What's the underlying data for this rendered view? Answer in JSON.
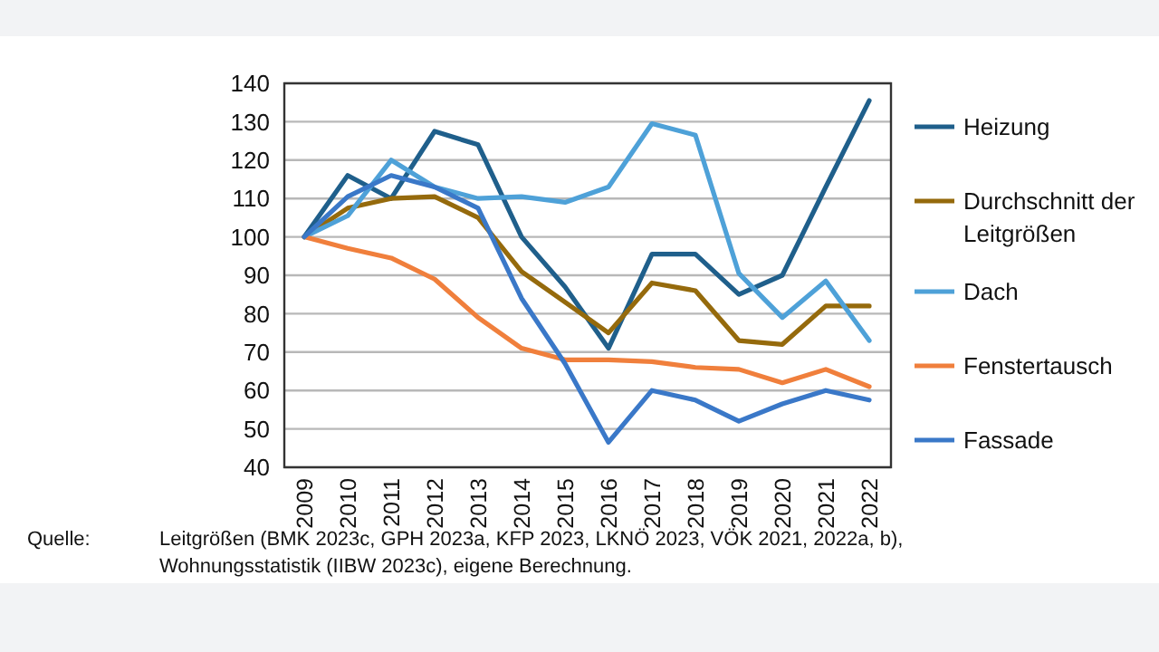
{
  "chart_data": {
    "type": "line",
    "categories": [
      "2009",
      "2010",
      "2011",
      "2012",
      "2013",
      "2014",
      "2015",
      "2016",
      "2017",
      "2018",
      "2019",
      "2020",
      "2021",
      "2022"
    ],
    "series": [
      {
        "name": "Heizung",
        "color": "#1f5f8b",
        "values": [
          100,
          116,
          110,
          127.5,
          124,
          100,
          87,
          71,
          95.5,
          95.5,
          85,
          90,
          113,
          135.5
        ]
      },
      {
        "name": "Durchschnitt der Leitgrößen",
        "color": "#956a0c",
        "values": [
          100,
          107.5,
          110,
          110.5,
          105,
          91,
          83,
          75,
          88,
          86,
          73,
          72,
          82,
          82
        ]
      },
      {
        "name": "Dach",
        "color": "#4ea1d8",
        "values": [
          100,
          105.5,
          120,
          113,
          110,
          110.5,
          109,
          113,
          129.5,
          126.5,
          90.5,
          79,
          88.5,
          73
        ]
      },
      {
        "name": "Fenstertausch",
        "color": "#f07f3c",
        "values": [
          100,
          97,
          94.5,
          89,
          79,
          71,
          68,
          68,
          67.5,
          66,
          65.5,
          62,
          65.5,
          61
        ]
      },
      {
        "name": "Fassade",
        "color": "#3a78c8",
        "values": [
          100,
          110.5,
          116,
          113,
          107.5,
          84,
          67,
          46.5,
          60,
          57.5,
          52,
          56.5,
          60,
          57.5
        ]
      }
    ],
    "ylim": [
      40,
      140
    ],
    "yticks": [
      40,
      50,
      60,
      70,
      80,
      90,
      100,
      110,
      120,
      130,
      140
    ],
    "grid": "y",
    "legend": "right",
    "marker": "none",
    "line_style": "solid",
    "annotations": [
      "Quelle:",
      "Leitgrößen (BMK 2023c, GPH 2023a, KFP 2023, LKNÖ 2023, VÖK 2021, 2022a, b), Wohnungsstatistik (IIBW 2023c), eigene Berechnung."
    ]
  }
}
